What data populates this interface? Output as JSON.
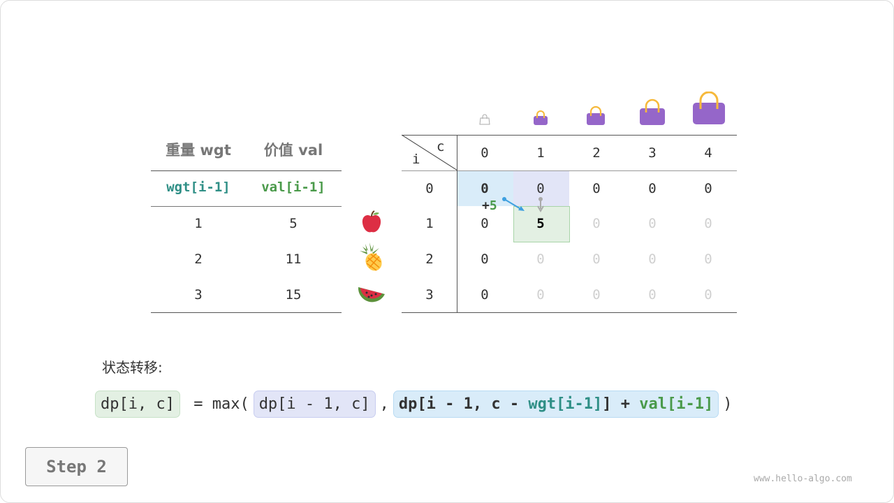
{
  "items_table": {
    "headers": [
      "重量 wgt",
      "价值 val"
    ],
    "subheaders": [
      "wgt[i-1]",
      "val[i-1]"
    ],
    "rows": [
      [
        "1",
        "5"
      ],
      [
        "2",
        "11"
      ],
      [
        "3",
        "15"
      ]
    ],
    "item_icons": [
      "apple-icon",
      "pineapple-icon",
      "watermelon-icon"
    ]
  },
  "dp_table": {
    "corner_col_label": "c",
    "corner_row_label": "i",
    "col_headers": [
      "0",
      "1",
      "2",
      "3",
      "4"
    ],
    "row_headers": [
      "0",
      "1",
      "2",
      "3"
    ],
    "cells": [
      [
        "0",
        "0",
        "0",
        "0",
        "0"
      ],
      [
        "0",
        "5",
        "0",
        "0",
        "0"
      ],
      [
        "0",
        "0",
        "0",
        "0",
        "0"
      ],
      [
        "0",
        "0",
        "0",
        "0",
        "0"
      ]
    ],
    "capacity_icons": [
      "empty-bag-icon",
      "bag-icon",
      "bag-icon",
      "bag-icon",
      "bag-icon"
    ],
    "annotation": {
      "plus": "+",
      "value": "5"
    }
  },
  "transition_label": "状态转移:",
  "formula": {
    "lhs": "dp[i, c]",
    "eq": " = max(",
    "opt1": "dp[i - 1, c]",
    "comma": ",",
    "opt2_a": "dp[i - 1, c - ",
    "opt2_wgt": "wgt[i-1]",
    "opt2_b": "] + ",
    "opt2_val": "val[i-1]",
    "close": ")"
  },
  "step_button": "Step 2",
  "watermark": "www.hello-algo.com",
  "colors": {
    "teal": "#2f8f86",
    "green": "#4a9a4a",
    "blue_bg": "#d9ecf9",
    "purple_bg": "#e2e5f7",
    "green_bg": "#e3f0e3",
    "bag": "#9566c9",
    "handle": "#f6b93b"
  }
}
